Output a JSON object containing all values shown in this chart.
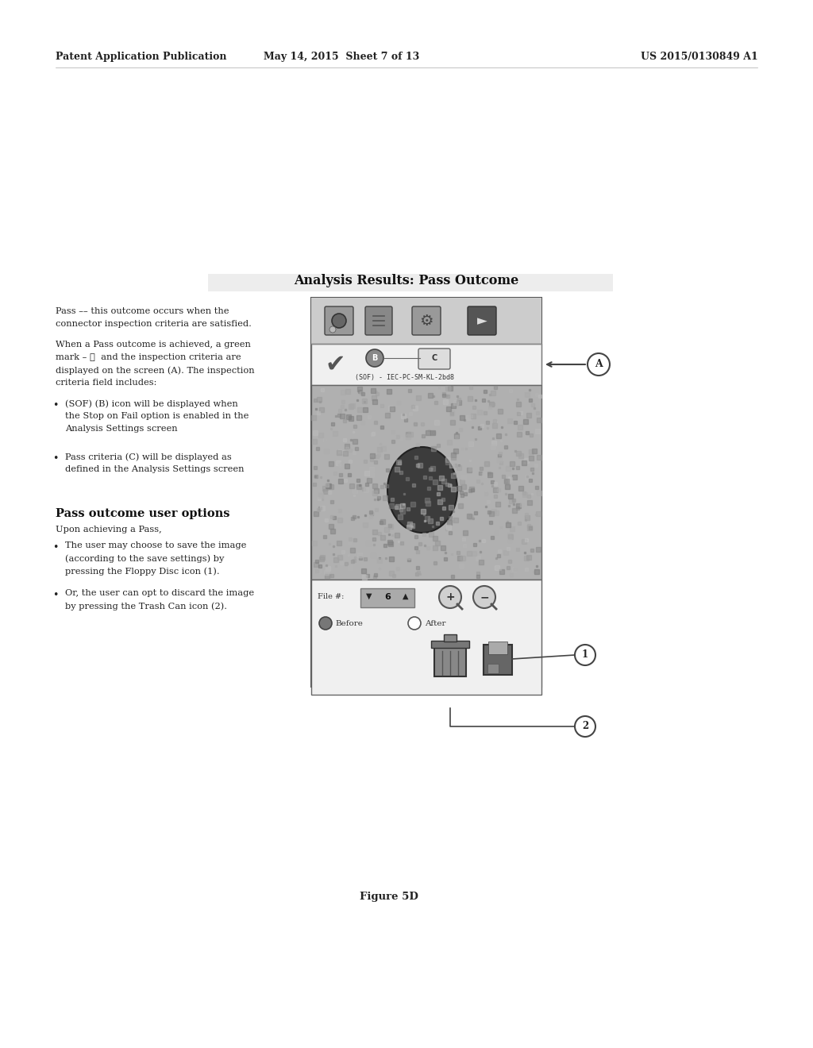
{
  "bg_color": "#ffffff",
  "header_left": "Patent Application Publication",
  "header_mid": "May 14, 2015  Sheet 7 of 13",
  "header_right": "US 2015/0130849 A1",
  "section_title": "Analysis Results: Pass Outcome",
  "body_lines": [
    "Pass –– this outcome occurs when the",
    "connector inspection criteria are satisfied.",
    "",
    "When a Pass outcome is achieved, a green",
    "mark – ✓  and the inspection criteria are",
    "displayed on the screen (A). The inspection",
    "criteria field includes:"
  ],
  "bullet1_lines": [
    "(SOF) (B) icon will be displayed when",
    "the Stop on Fail option is enabled in the",
    "Analysis Settings screen"
  ],
  "bullet2_lines": [
    "Pass criteria (C) will be displayed as",
    "defined in the Analysis Settings screen"
  ],
  "section2_title": "Pass outcome user options",
  "section2_sub": "Upon achieving a Pass,",
  "bullet3_lines": [
    "The user may choose to save the image",
    "(according to the save settings) by",
    "pressing the Floppy Disc icon (1)."
  ],
  "bullet4_lines": [
    "Or, the user can opt to discard the image",
    "by pressing the Trash Can icon (2)."
  ],
  "figure_label": "Figure 5D"
}
